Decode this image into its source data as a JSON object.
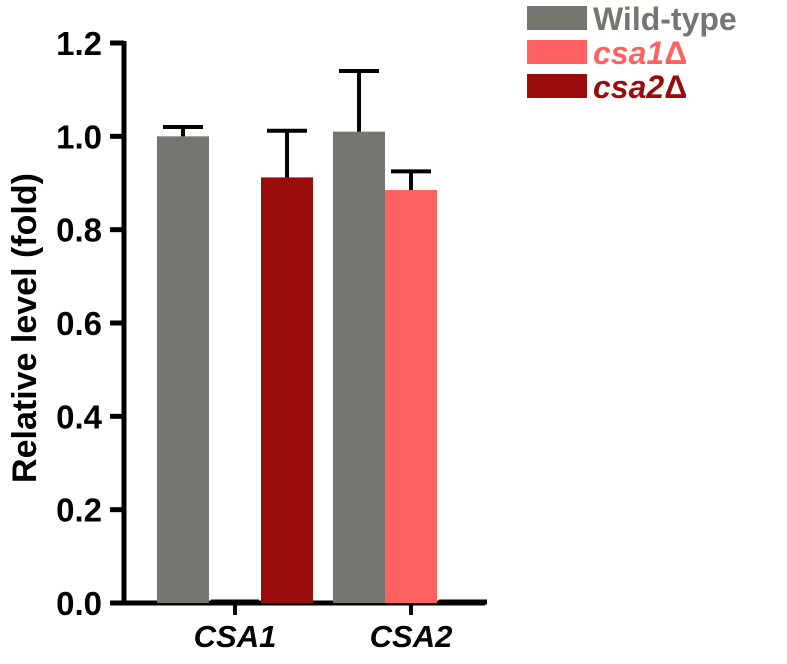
{
  "chart_data": {
    "type": "bar",
    "categories": [
      "CSA1",
      "CSA2"
    ],
    "series": [
      {
        "name": "Wild-type",
        "label_main": "Wild-type",
        "label_suffix": "",
        "italic": false,
        "color": "#767670",
        "values": [
          1.0,
          1.01
        ],
        "errors": [
          0.02,
          0.13
        ]
      },
      {
        "name": "csa1Δ",
        "label_main": "csa1",
        "label_suffix": "Δ",
        "italic": true,
        "color": "#ff6161",
        "values": [
          0.0,
          0.885
        ],
        "errors": [
          0.0,
          0.04
        ]
      },
      {
        "name": "csa2Δ",
        "label_main": "csa2",
        "label_suffix": "Δ",
        "italic": true,
        "color": "#990c0c",
        "values": [
          0.912,
          0.0
        ],
        "errors": [
          0.1,
          0.0
        ]
      }
    ],
    "ylabel": "Relative level (fold)",
    "xlabel": "",
    "ylim": [
      0,
      1.2
    ],
    "yticks": [
      "0.0",
      "0.2",
      "0.4",
      "0.6",
      "0.8",
      "1.0",
      "1.2"
    ],
    "grid": false,
    "legend_position": "top-right"
  }
}
